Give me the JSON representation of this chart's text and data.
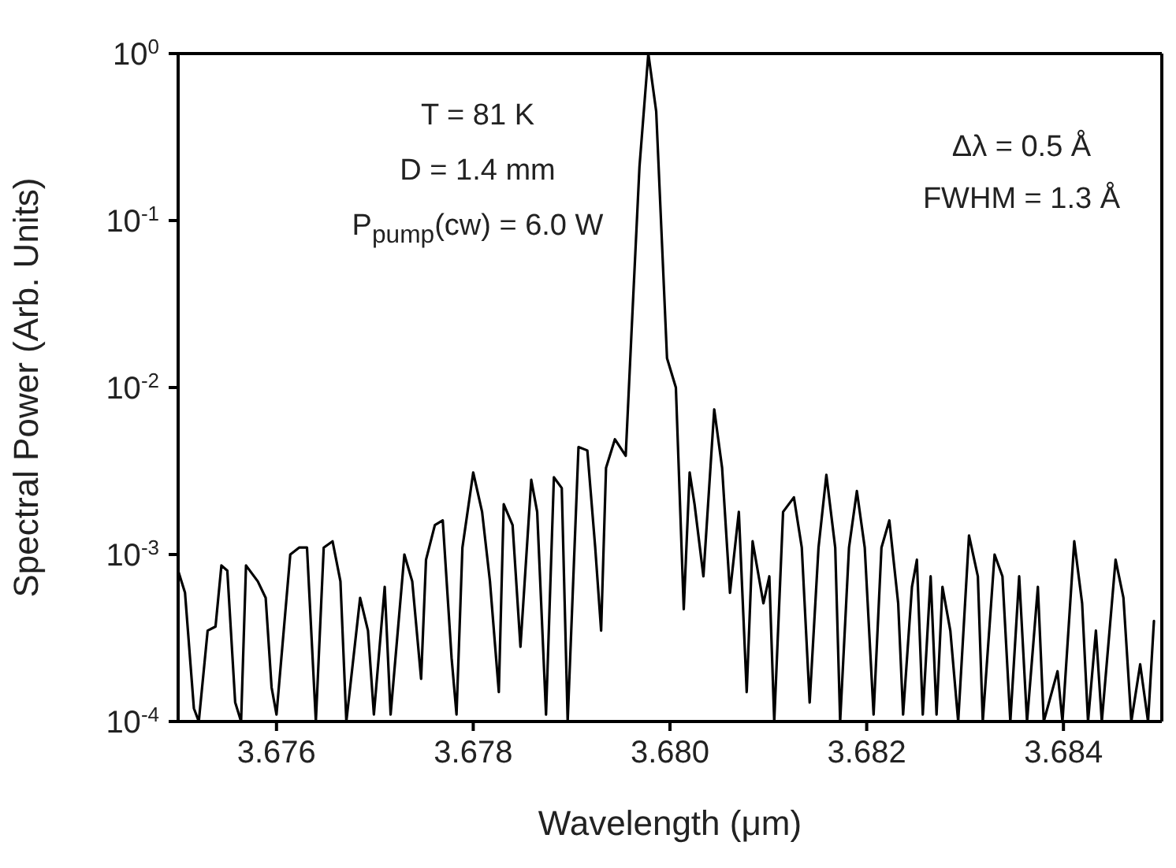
{
  "chart_data": {
    "type": "line",
    "xlabel": "Wavelength (μm)",
    "ylabel": "Spectral Power (Arb. Units)",
    "log": "y",
    "grid": false,
    "legend": false,
    "xlim": [
      3.675,
      3.685
    ],
    "xticks": [
      3.676,
      3.678,
      {
        "value": 3.68,
        "label": "3.680"
      },
      3.682,
      3.684
    ],
    "ylim": [
      0.0001,
      1
    ],
    "yticks": [
      {
        "value": 0.0001,
        "label": "10$^{-4}$"
      },
      {
        "value": 0.001,
        "label": "10$^{-3}$"
      },
      {
        "value": 0.01,
        "label": "10$^{-2}$"
      },
      {
        "value": 0.1,
        "label": "10$^{-1}$"
      },
      {
        "value": 1,
        "label": "10$^{0}$"
      }
    ],
    "annotations": [
      "T = 81 K",
      "D = 1.4 mm",
      "P$_{pump}$(cw) = 6.0 W",
      "Δλ = 0.5 Å",
      "FWHM = 1.3 Å"
    ],
    "series": [
      {
        "color": "#000000",
        "x": [
          3.675,
          3.67507,
          3.67516,
          3.67521,
          3.6753,
          3.67538,
          3.67544,
          3.6755,
          3.67558,
          3.67564,
          3.67569,
          3.67581,
          3.67589,
          3.67595,
          3.676,
          3.67614,
          3.67623,
          3.67631,
          3.6764,
          3.67648,
          3.67657,
          3.67665,
          3.67671,
          3.67685,
          3.67693,
          3.67699,
          3.6771,
          3.67716,
          3.6773,
          3.67738,
          3.67747,
          3.67752,
          3.67761,
          3.67769,
          3.67778,
          3.67783,
          3.67789,
          3.678,
          3.67809,
          3.67817,
          3.67826,
          3.67831,
          3.6784,
          3.67848,
          3.67859,
          3.67865,
          3.67874,
          3.67882,
          3.6789,
          3.67896,
          3.67907,
          3.67916,
          3.67924,
          3.6793,
          3.67935,
          3.67944,
          3.67955,
          3.67961,
          3.67969,
          3.67978,
          3.67986,
          3.67997,
          3.68006,
          3.68014,
          3.6802,
          3.68025,
          3.68034,
          3.68045,
          3.68053,
          3.68061,
          3.6807,
          3.68078,
          3.68084,
          3.68095,
          3.68101,
          3.68106,
          3.68115,
          3.68126,
          3.68134,
          3.68142,
          3.68151,
          3.68159,
          3.68168,
          3.68173,
          3.68182,
          3.6819,
          3.68198,
          3.68207,
          3.68215,
          3.68223,
          3.68232,
          3.68237,
          3.68246,
          3.68251,
          3.68257,
          3.68265,
          3.68271,
          3.68277,
          3.68285,
          3.68293,
          3.68304,
          3.68313,
          3.68318,
          3.6833,
          3.68338,
          3.68346,
          3.68355,
          3.68363,
          3.68374,
          3.6838,
          3.68394,
          3.68399,
          3.68411,
          3.68419,
          3.68425,
          3.68433,
          3.68439,
          3.68453,
          3.68461,
          3.68469,
          3.68478,
          3.68486,
          3.68492
        ],
        "values": [
          0.0008,
          0.00059,
          0.00012,
          0.0001,
          0.00035,
          0.00037,
          0.00086,
          0.0008,
          0.00013,
          0.0001,
          0.00086,
          0.00069,
          0.00055,
          0.00016,
          0.00011,
          0.001,
          0.0011,
          0.0011,
          0.0001,
          0.0011,
          0.0012,
          0.00069,
          0.0001,
          0.00055,
          0.00035,
          0.00011,
          0.00064,
          0.00011,
          0.001,
          0.00069,
          0.00018,
          0.00093,
          0.0015,
          0.0016,
          0.00024,
          0.00011,
          0.0011,
          0.0031,
          0.0018,
          0.00069,
          0.00015,
          0.002,
          0.0015,
          0.00028,
          0.0028,
          0.0018,
          0.00011,
          0.0029,
          0.0025,
          0.0001,
          0.0044,
          0.0042,
          0.0011,
          0.00035,
          0.0033,
          0.0049,
          0.0039,
          0.022,
          0.21,
          1,
          0.45,
          0.015,
          0.01,
          0.00047,
          0.0031,
          0.002,
          0.00074,
          0.0074,
          0.0033,
          0.00059,
          0.0018,
          0.00015,
          0.0012,
          0.00051,
          0.00074,
          0.0001,
          0.0018,
          0.0022,
          0.0011,
          0.00013,
          0.0011,
          0.003,
          0.0011,
          0.0001,
          0.0011,
          0.0024,
          0.0011,
          0.00011,
          0.0011,
          0.0016,
          0.00051,
          0.00011,
          0.00064,
          0.00093,
          0.00011,
          0.00074,
          0.00011,
          0.00064,
          0.00035,
          0.0001,
          0.0013,
          0.00074,
          0.0001,
          0.001,
          0.00074,
          0.0001,
          0.00074,
          0.0001,
          0.00064,
          0.0001,
          0.0002,
          0.0001,
          0.0012,
          0.00051,
          0.0001,
          0.00035,
          0.0001,
          0.00093,
          0.00055,
          0.0001,
          0.00022,
          0.0001,
          0.0004
        ]
      }
    ]
  }
}
